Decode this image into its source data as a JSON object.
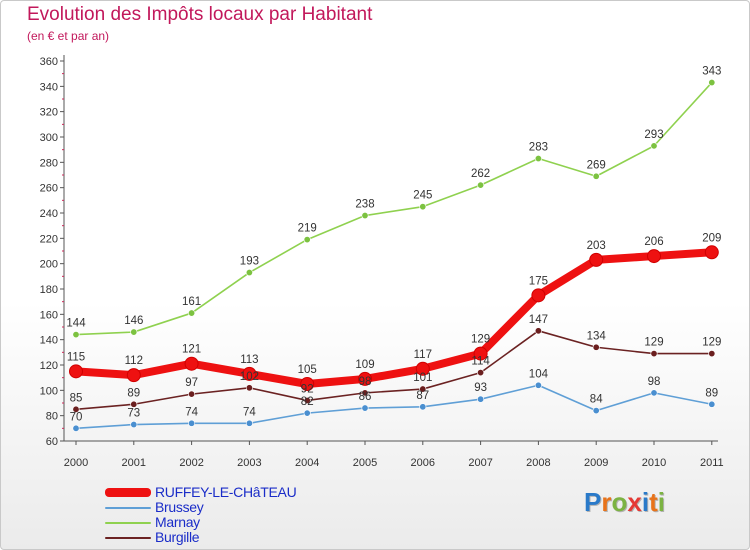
{
  "header": {
    "title": "Evolution des Impôts locaux par Habitant",
    "subtitle": "(en € et par an)"
  },
  "logo": {
    "letters": [
      "P",
      "r",
      "o",
      "x",
      "i",
      "t",
      "i"
    ],
    "colors": [
      "#2a7ac9",
      "#e8731a",
      "#7cb342",
      "#e53935",
      "#2a7ac9",
      "#e8731a",
      "#7cb342"
    ]
  },
  "chart_data": {
    "type": "line",
    "title": "Evolution des Impôts locaux par Habitant",
    "subtitle": "(en € et par an)",
    "xlabel": "",
    "ylabel": "",
    "x": [
      "2000",
      "2001",
      "2002",
      "2003",
      "2004",
      "2005",
      "2006",
      "2007",
      "2008",
      "2009",
      "2010",
      "2011"
    ],
    "ylim": [
      60,
      360
    ],
    "yticks": [
      60,
      80,
      100,
      120,
      140,
      160,
      180,
      200,
      220,
      240,
      260,
      280,
      300,
      320,
      340,
      360
    ],
    "grid": false,
    "legend_position": "bottom-left",
    "series": [
      {
        "name": "Marnay",
        "color": "#8fd14f",
        "marker": "#7cc240",
        "values": [
          144,
          146,
          161,
          193,
          219,
          238,
          245,
          262,
          283,
          269,
          293,
          343
        ]
      },
      {
        "name": "Burgille",
        "color": "#6b2222",
        "marker": "#6b1f1f",
        "values": [
          85,
          89,
          97,
          102,
          92,
          98,
          101,
          114,
          147,
          134,
          129,
          129
        ]
      },
      {
        "name": "Brussey",
        "color": "#5f9fd6",
        "marker": "#4a8fd0",
        "values": [
          70,
          73,
          74,
          74,
          82,
          86,
          87,
          93,
          104,
          84,
          98,
          89
        ]
      },
      {
        "name": "RUFFEY-LE-CHâTEAU",
        "color": "#ee1111",
        "marker": "#ee1111",
        "values": [
          115,
          112,
          121,
          113,
          105,
          109,
          117,
          129,
          175,
          203,
          206,
          209
        ]
      }
    ],
    "legend_order": [
      "RUFFEY-LE-CHâTEAU",
      "Brussey",
      "Marnay",
      "Burgille"
    ]
  }
}
